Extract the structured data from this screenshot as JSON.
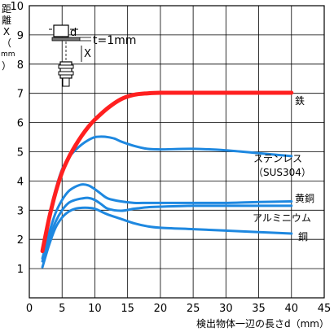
{
  "chart_data": {
    "type": "line",
    "xlabel": "検出物体一辺の長さd（mm）",
    "ylabel_chars": [
      "距",
      "離",
      "X",
      "（",
      "mm",
      "）"
    ],
    "xlim": [
      0,
      45
    ],
    "ylim": [
      0,
      10
    ],
    "xticks": [
      0,
      5,
      10,
      15,
      20,
      25,
      30,
      35,
      40,
      45
    ],
    "yticks": [
      1,
      2,
      3,
      4,
      5,
      6,
      7,
      8,
      9,
      10
    ],
    "grid": true,
    "inset_label": "t=1mm",
    "inset_d": "d",
    "inset_x": "X",
    "series": [
      {
        "name": "鉄",
        "color": "#ff2020",
        "width": 5,
        "x": [
          2,
          3,
          4,
          5,
          6,
          7,
          8,
          9,
          10,
          12,
          14,
          16,
          18,
          20,
          25,
          30,
          35,
          40
        ],
        "y": [
          1.6,
          2.7,
          3.6,
          4.3,
          4.8,
          5.2,
          5.55,
          5.85,
          6.1,
          6.5,
          6.8,
          6.95,
          7.0,
          7.02,
          7.02,
          7.02,
          7.02,
          7.02
        ]
      },
      {
        "name": "ステンレス（SUS304）",
        "color": "#1e88e0",
        "width": 3,
        "x": [
          2,
          3,
          4,
          5,
          6,
          7,
          8,
          9,
          10,
          11,
          12,
          13,
          14,
          16,
          18,
          20,
          25,
          30,
          35,
          40
        ],
        "y": [
          1.7,
          2.8,
          3.7,
          4.4,
          4.8,
          5.05,
          5.25,
          5.4,
          5.5,
          5.52,
          5.5,
          5.45,
          5.35,
          5.2,
          5.1,
          5.08,
          5.1,
          5.05,
          4.95,
          4.85
        ]
      },
      {
        "name": "黄銅",
        "color": "#1e88e0",
        "width": 3,
        "x": [
          2,
          3,
          4,
          5,
          6,
          7,
          8,
          9,
          10,
          11,
          12,
          14,
          16,
          18,
          20,
          25,
          30,
          35,
          40
        ],
        "y": [
          1.35,
          2.2,
          2.9,
          3.35,
          3.65,
          3.8,
          3.88,
          3.85,
          3.72,
          3.55,
          3.4,
          3.3,
          3.25,
          3.25,
          3.25,
          3.25,
          3.25,
          3.28,
          3.3
        ]
      },
      {
        "name": "アルミニウム",
        "color": "#1e88e0",
        "width": 3,
        "x": [
          2,
          3,
          4,
          5,
          6,
          7,
          8,
          9,
          10,
          11,
          12,
          14,
          16,
          18,
          20,
          25,
          30,
          35,
          40
        ],
        "y": [
          1.25,
          2.0,
          2.6,
          3.0,
          3.25,
          3.35,
          3.4,
          3.42,
          3.35,
          3.2,
          3.05,
          2.98,
          3.05,
          3.1,
          3.12,
          3.15,
          3.15,
          3.15,
          3.15
        ]
      },
      {
        "name": "銅",
        "color": "#1e88e0",
        "width": 3,
        "x": [
          2,
          3,
          4,
          5,
          6,
          7,
          8,
          9,
          10,
          11,
          12,
          14,
          16,
          18,
          20,
          25,
          30,
          35,
          40
        ],
        "y": [
          1.05,
          1.8,
          2.4,
          2.75,
          2.95,
          3.05,
          3.08,
          3.08,
          3.05,
          2.95,
          2.85,
          2.7,
          2.55,
          2.45,
          2.4,
          2.35,
          2.3,
          2.25,
          2.2
        ]
      }
    ]
  }
}
